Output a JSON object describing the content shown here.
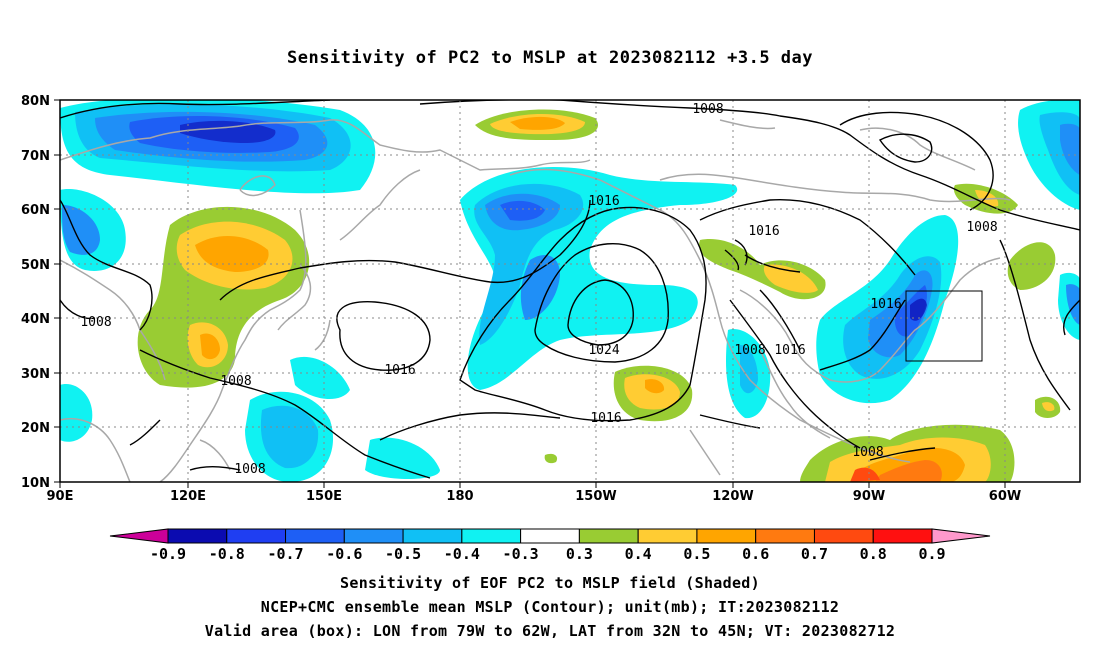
{
  "title": "Sensitivity of PC2 to MSLP at 2023082112 +3.5 day",
  "map": {
    "x_ticks": [
      "90E",
      "120E",
      "150E",
      "180",
      "150W",
      "120W",
      "90W",
      "60W"
    ],
    "y_ticks": [
      "10N",
      "20N",
      "30N",
      "40N",
      "50N",
      "60N",
      "70N",
      "80N"
    ],
    "contour_labels": [
      "1008",
      "1016",
      "1016",
      "1008",
      "1008",
      "1008",
      "1016",
      "1024",
      "1016",
      "1016",
      "1016",
      "1008",
      "1008",
      "1016",
      "1008"
    ]
  },
  "colorbar": {
    "labels": [
      "-0.9",
      "-0.8",
      "-0.7",
      "-0.6",
      "-0.5",
      "-0.4",
      "-0.3",
      "0.3",
      "0.4",
      "0.5",
      "0.6",
      "0.7",
      "0.8",
      "0.9"
    ],
    "colors": [
      "#0b0bb0",
      "#1f3ef2",
      "#1e5ff5",
      "#1f8ff7",
      "#10c0f5",
      "#10f2f2",
      "#ffffff",
      "#99cc33",
      "#ffcc33",
      "#ffa500",
      "#ff7a10",
      "#ff4a10",
      "#ff1010"
    ],
    "left_arrow_color": "#cc0099",
    "right_arrow_color": "#ff99cc"
  },
  "footer": {
    "line1": "Sensitivity of EOF PC2 to MSLP field (Shaded)",
    "line2": "NCEP+CMC ensemble mean MSLP (Contour); unit(mb); IT:2023082112",
    "line3": "Valid area (box): LON from 79W to 62W, LAT from 32N to 45N; VT: 2023082712"
  }
}
